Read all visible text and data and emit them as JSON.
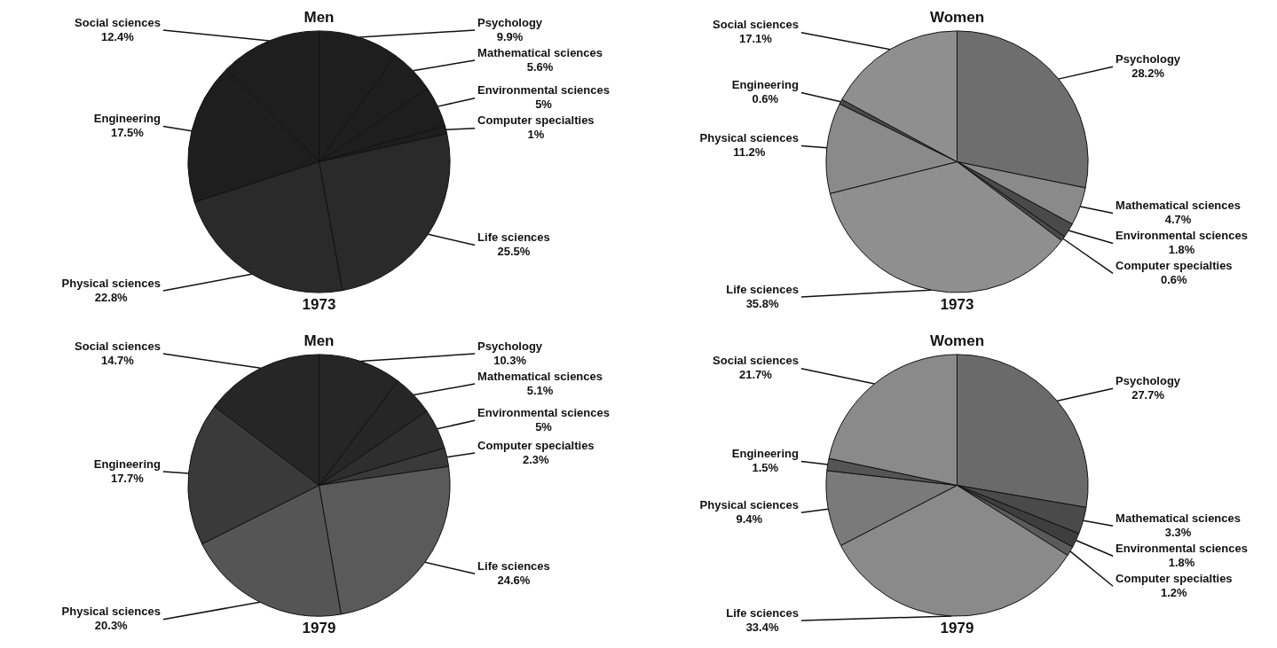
{
  "chart_data": [
    {
      "type": "pie",
      "title": "Men",
      "annotations": [
        "1973"
      ],
      "categories": [
        "Psychology",
        "Mathematical sciences",
        "Environmental sciences",
        "Computer specialties",
        "Life sciences",
        "Physical sciences",
        "Engineering",
        "Social sciences"
      ],
      "values": [
        9.9,
        5.6,
        5,
        1,
        25.5,
        22.8,
        17.5,
        12.4
      ],
      "value_labels": [
        "9.9%",
        "5.6%",
        "5%",
        "1%",
        "25.5%",
        "22.8%",
        "17.5%",
        "12.4%"
      ],
      "colors": [
        "#1e1e1e",
        "#1e1e1e",
        "#1e1e1e",
        "#1e1e1e",
        "#2a2a2a",
        "#2a2a2a",
        "#1e1e1e",
        "#1e1e1e"
      ]
    },
    {
      "type": "pie",
      "title": "Women",
      "annotations": [
        "1973"
      ],
      "categories": [
        "Psychology",
        "Mathematical sciences",
        "Environmental sciences",
        "Computer specialties",
        "Life sciences",
        "Physical sciences",
        "Engineering",
        "Social sciences"
      ],
      "values": [
        28.2,
        4.7,
        1.8,
        0.6,
        35.8,
        11.2,
        0.6,
        17.1
      ],
      "value_labels": [
        "28.2%",
        "4.7%",
        "1.8%",
        "0.6%",
        "35.8%",
        "11.2%",
        "0.6%",
        "17.1%"
      ],
      "colors": [
        "#6e6e6e",
        "#8a8a8a",
        "#4a4a4a",
        "#4a4a4a",
        "#8f8f8f",
        "#8a8a8a",
        "#4a4a4a",
        "#8f8f8f"
      ]
    },
    {
      "type": "pie",
      "title": "Men",
      "annotations": [
        "1979"
      ],
      "categories": [
        "Psychology",
        "Mathematical sciences",
        "Environmental sciences",
        "Computer specialties",
        "Life sciences",
        "Physical sciences",
        "Engineering",
        "Social sciences"
      ],
      "values": [
        10.3,
        5.1,
        5,
        2.3,
        24.6,
        20.3,
        17.7,
        14.7
      ],
      "value_labels": [
        "10.3%",
        "5.1%",
        "5%",
        "2.3%",
        "24.6%",
        "20.3%",
        "17.7%",
        "14.7%"
      ],
      "colors": [
        "#262626",
        "#262626",
        "#2e2e2e",
        "#3a3a3a",
        "#5a5a5a",
        "#555555",
        "#3a3a3a",
        "#262626"
      ]
    },
    {
      "type": "pie",
      "title": "Women",
      "annotations": [
        "1979"
      ],
      "categories": [
        "Psychology",
        "Mathematical sciences",
        "Environmental sciences",
        "Computer specialties",
        "Life sciences",
        "Physical sciences",
        "Engineering",
        "Social sciences"
      ],
      "values": [
        27.7,
        3.3,
        1.8,
        1.2,
        33.4,
        9.4,
        1.5,
        21.7
      ],
      "value_labels": [
        "27.7%",
        "3.3%",
        "1.8%",
        "1.2%",
        "33.4%",
        "9.4%",
        "1.5%",
        "21.7%"
      ],
      "colors": [
        "#6a6a6a",
        "#4a4a4a",
        "#3e3e3e",
        "#5a5a5a",
        "#8a8a8a",
        "#7a7a7a",
        "#555555",
        "#8a8a8a"
      ]
    }
  ]
}
